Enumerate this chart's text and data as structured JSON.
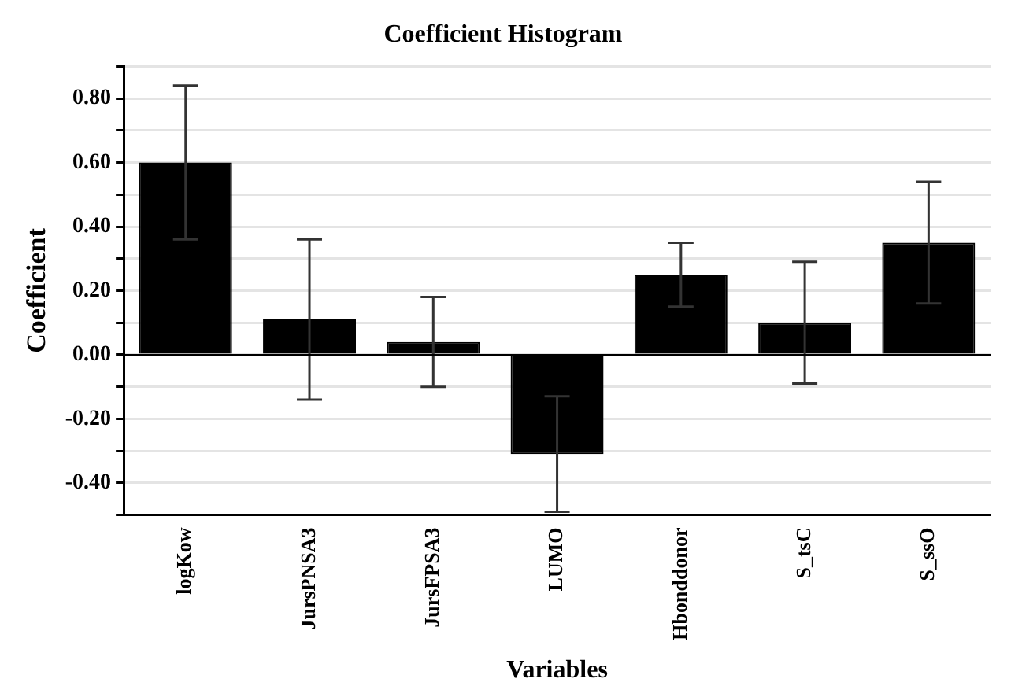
{
  "chart_data": {
    "type": "bar",
    "title": "Coefficient Histogram",
    "xlabel": "Variables",
    "ylabel": "Coefficient",
    "categories": [
      "logKow",
      "JursPNSA3",
      "JursFPSA3",
      "LUMO",
      "Hbonddonor",
      "S_tsC",
      "S_ssO"
    ],
    "values": [
      0.6,
      0.11,
      0.04,
      -0.31,
      0.25,
      0.1,
      0.35
    ],
    "errors": [
      0.24,
      0.25,
      0.14,
      0.18,
      0.1,
      0.19,
      0.19
    ],
    "color": "#000000",
    "ylim": [
      -0.5,
      0.9
    ],
    "yticks": [
      {
        "value": -0.5,
        "label": null
      },
      {
        "value": -0.4,
        "label": "-0.40"
      },
      {
        "value": -0.3,
        "label": null
      },
      {
        "value": -0.2,
        "label": "-0.20"
      },
      {
        "value": -0.1,
        "label": null
      },
      {
        "value": 0,
        "label": "0.00"
      },
      {
        "value": 0.1,
        "label": null
      },
      {
        "value": 0.2,
        "label": "0.20"
      },
      {
        "value": 0.3,
        "label": null
      },
      {
        "value": 0.4,
        "label": "0.40"
      },
      {
        "value": 0.5,
        "label": null
      },
      {
        "value": 0.6,
        "label": "0.60"
      },
      {
        "value": 0.7,
        "label": null
      },
      {
        "value": 0.8,
        "label": "0.80"
      },
      {
        "value": 0.9,
        "label": null
      }
    ],
    "grid": "y",
    "legend": false
  }
}
